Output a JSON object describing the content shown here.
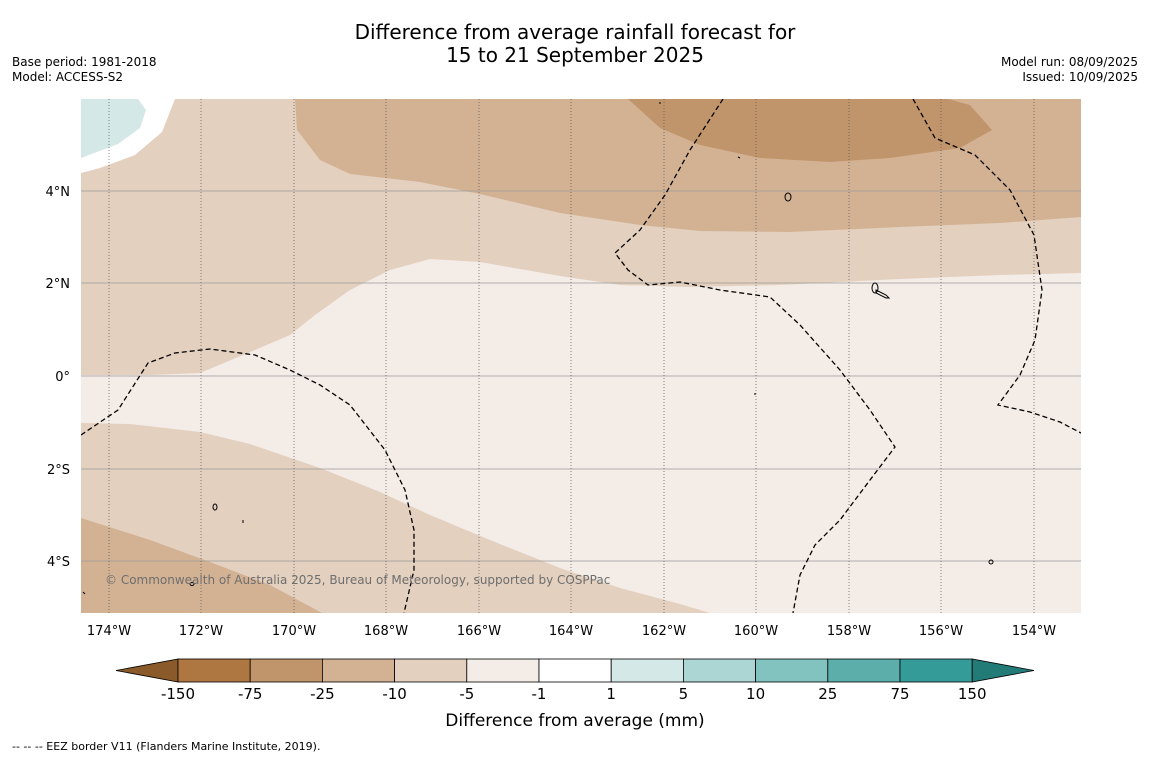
{
  "title": {
    "line1": "Difference from average rainfall forecast for",
    "line2": "15 to 21 September 2025"
  },
  "meta_left": {
    "base_period": "Base period: 1981-2018",
    "model": "Model: ACCESS-S2"
  },
  "meta_right": {
    "model_run": "Model run: 08/09/2025",
    "issued": "Issued: 10/09/2025"
  },
  "map": {
    "lat_labels": [
      "4°N",
      "2°N",
      "0°",
      "2°S",
      "4°S"
    ],
    "lon_labels": [
      "174°W",
      "172°W",
      "170°W",
      "168°W",
      "166°W",
      "164°W",
      "162°W",
      "160°W",
      "158°W",
      "156°W",
      "154°W"
    ],
    "copyright": "© Commonwealth of Australia 2025, Bureau of Meteorology, supported by COSPPac"
  },
  "colorbar": {
    "title": "Difference from average (mm)",
    "labels": [
      "-150",
      "-75",
      "-25",
      "-10",
      "-5",
      "-1",
      "1",
      "5",
      "10",
      "25",
      "75",
      "150"
    ],
    "colors": [
      "#8a5a2b",
      "#ae7640",
      "#c1956b",
      "#d3b294",
      "#e3d0bf",
      "#f4ece6",
      "#ffffff",
      "#d4e8e7",
      "#abd6d4",
      "#82c2bf",
      "#5caeab",
      "#359b98",
      "#237b78"
    ]
  },
  "footer": "--  --  -- EEZ border V11 (Flanders Marine Institute, 2019)."
}
